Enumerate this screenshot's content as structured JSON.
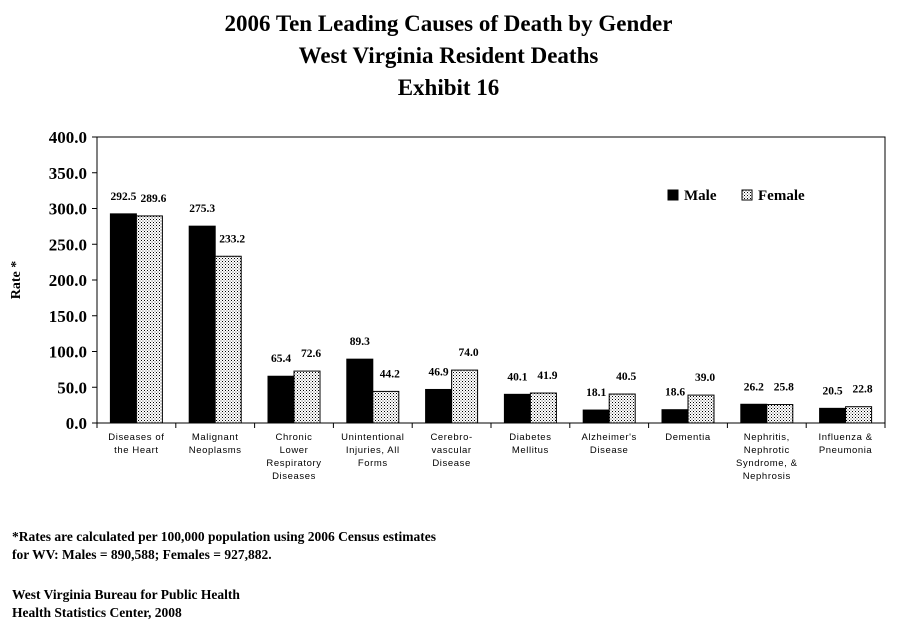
{
  "titles": [
    "2006 Ten Leading Causes of Death by Gender",
    "West Virginia Resident Deaths",
    "Exhibit 16"
  ],
  "footnote": [
    "*Rates are calculated per 100,000 population using 2006 Census estimates",
    "for WV:  Males = 890,588;  Females = 927,882."
  ],
  "source": [
    "West Virginia Bureau for Public Health",
    "Health Statistics Center, 2008"
  ],
  "colors": {
    "male": "#000000",
    "female_pattern": "dotted",
    "frame": "#000000"
  },
  "chart_data": {
    "type": "bar",
    "ylabel": "Rate *",
    "ylim": [
      0,
      400
    ],
    "yticks": [
      "0.0",
      "50.0",
      "100.0",
      "150.0",
      "200.0",
      "250.0",
      "300.0",
      "350.0",
      "400.0"
    ],
    "legend_placement": "top-right",
    "grid": false,
    "categories": [
      [
        "Diseases of",
        "the Heart"
      ],
      [
        "Malignant",
        "Neoplasms"
      ],
      [
        "Chronic",
        "Lower",
        "Respiratory",
        "Diseases"
      ],
      [
        "Unintentional",
        "Injuries, All",
        "Forms"
      ],
      [
        "Cerebro-",
        "vascular",
        "Disease"
      ],
      [
        "Diabetes",
        "Mellitus"
      ],
      [
        "Alzheimer's",
        "Disease"
      ],
      [
        "Dementia"
      ],
      [
        "Nephritis,",
        "Nephrotic",
        "Syndrome, &",
        "Nephrosis"
      ],
      [
        "Influenza &",
        "Pneumonia"
      ]
    ],
    "series": [
      {
        "name": "Male",
        "values": [
          292.5,
          275.3,
          65.4,
          89.3,
          46.9,
          40.1,
          18.1,
          18.6,
          26.2,
          20.5
        ],
        "labels": [
          "292.5",
          "275.3",
          "65.4",
          "89.3",
          "46.9",
          "40.1",
          "18.1",
          "18.6",
          "26.2",
          "20.5"
        ]
      },
      {
        "name": "Female",
        "values": [
          289.6,
          233.2,
          72.6,
          44.2,
          74.0,
          41.9,
          40.5,
          39.0,
          25.8,
          22.8
        ],
        "labels": [
          "289.6",
          "233.2",
          "72.6",
          "44.2",
          "74.0",
          "41.9",
          "40.5",
          "39.0",
          "25.8",
          "22.8"
        ]
      }
    ]
  }
}
